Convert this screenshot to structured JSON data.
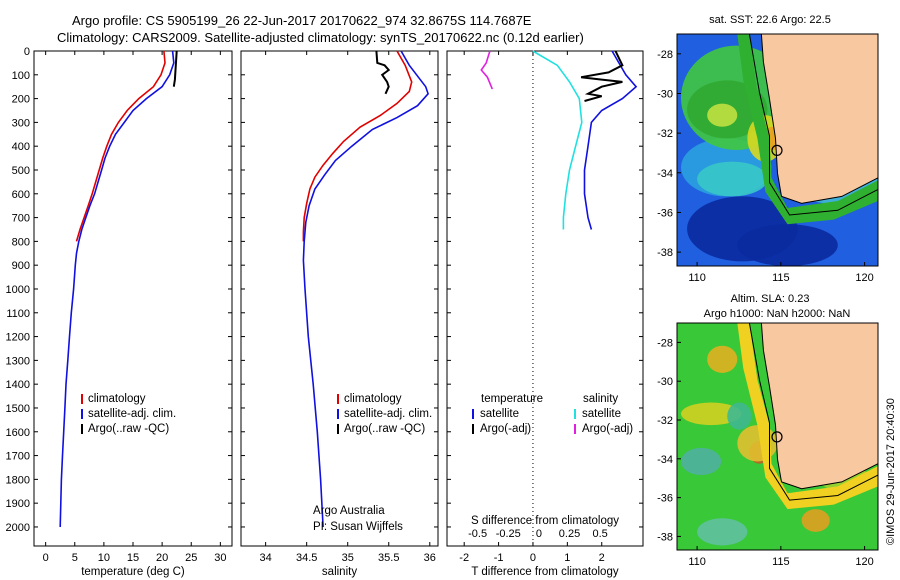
{
  "header": {
    "line1": "Argo profile: CS 5905199_26 22-Jun-2017 20170622_974 32.8675S 114.7687E",
    "line2": "Climatology: CARS2009. Satellite-adjusted climatology: synTS_20170622.nc (0.12d earlier)"
  },
  "colors": {
    "climatology": "#e00000",
    "satellite": "#1010e0",
    "argo": "#000000",
    "sat_salinity": "#20e0e0",
    "argo_salinity": "#e020e0",
    "land": "#f8c8a0"
  },
  "footer": {
    "credit_line1": "Argo Australia",
    "credit_line2": "PI: Susan Wijffels",
    "imos_stamp": "©IMOS 29-Jun-2017 20:40:30"
  },
  "chart_data": [
    {
      "type": "line",
      "id": "temperature",
      "xlabel": "temperature (deg C)",
      "ylabel": "",
      "xlim": [
        -2,
        32
      ],
      "ylim": [
        0,
        2080
      ],
      "xticks": [
        0,
        5,
        10,
        15,
        20,
        25,
        30
      ],
      "yticks": [
        0,
        100,
        200,
        300,
        400,
        500,
        600,
        700,
        800,
        900,
        1000,
        1100,
        1200,
        1300,
        1400,
        1500,
        1600,
        1700,
        1800,
        1900,
        2000
      ],
      "legend": [
        "climatology",
        "satellite-adj. clim.",
        "Argo(..raw -QC)"
      ],
      "series": [
        {
          "name": "climatology",
          "color": "#e00000",
          "points": [
            [
              20.3,
              0
            ],
            [
              20.5,
              50
            ],
            [
              19.8,
              100
            ],
            [
              18.5,
              150
            ],
            [
              16,
              200
            ],
            [
              14,
              250
            ],
            [
              12.5,
              300
            ],
            [
              11.3,
              350
            ],
            [
              10.5,
              400
            ],
            [
              9.8,
              450
            ],
            [
              9.2,
              500
            ],
            [
              8.6,
              550
            ],
            [
              8,
              600
            ],
            [
              7.3,
              650
            ],
            [
              6.6,
              700
            ],
            [
              5.9,
              750
            ],
            [
              5.3,
              800
            ]
          ]
        },
        {
          "name": "satellite-adj. clim.",
          "color": "#1010e0",
          "points": [
            [
              21.8,
              0
            ],
            [
              22,
              50
            ],
            [
              21.3,
              100
            ],
            [
              20,
              150
            ],
            [
              17.3,
              200
            ],
            [
              15,
              250
            ],
            [
              13.5,
              300
            ],
            [
              12,
              350
            ],
            [
              11,
              400
            ],
            [
              10.2,
              450
            ],
            [
              9.6,
              500
            ],
            [
              9,
              550
            ],
            [
              8.4,
              600
            ],
            [
              7.6,
              650
            ],
            [
              6.9,
              700
            ],
            [
              6.2,
              750
            ],
            [
              5.7,
              800
            ],
            [
              5.3,
              850
            ],
            [
              5.1,
              900
            ],
            [
              4.8,
              1000
            ],
            [
              4.4,
              1100
            ],
            [
              4.1,
              1200
            ],
            [
              3.8,
              1300
            ],
            [
              3.5,
              1400
            ],
            [
              3.3,
              1500
            ],
            [
              3.1,
              1600
            ],
            [
              2.9,
              1700
            ],
            [
              2.7,
              1800
            ],
            [
              2.6,
              1900
            ],
            [
              2.5,
              2000
            ]
          ]
        },
        {
          "name": "Argo(..raw -QC)",
          "color": "#000000",
          "points": [
            [
              22.5,
              0
            ],
            [
              22.4,
              40
            ],
            [
              22.3,
              80
            ],
            [
              22.2,
              120
            ],
            [
              22.0,
              150
            ]
          ]
        }
      ]
    },
    {
      "type": "line",
      "id": "salinity",
      "xlabel": "salinity",
      "xlim": [
        33.7,
        36.1
      ],
      "ylim": [
        0,
        2080
      ],
      "xticks": [
        34,
        34.5,
        35,
        35.5,
        36
      ],
      "legend": [
        "climatology",
        "satellite-adj. clim.",
        "Argo(..raw -QC)"
      ],
      "series": [
        {
          "name": "climatology",
          "color": "#e00000",
          "points": [
            [
              35.6,
              0
            ],
            [
              35.7,
              60
            ],
            [
              35.78,
              130
            ],
            [
              35.75,
              170
            ],
            [
              35.6,
              220
            ],
            [
              35.4,
              270
            ],
            [
              35.15,
              320
            ],
            [
              34.95,
              380
            ],
            [
              34.82,
              430
            ],
            [
              34.7,
              480
            ],
            [
              34.6,
              530
            ],
            [
              34.54,
              580
            ],
            [
              34.5,
              640
            ],
            [
              34.47,
              700
            ],
            [
              34.46,
              760
            ],
            [
              34.46,
              800
            ]
          ]
        },
        {
          "name": "satellite-adj. clim.",
          "color": "#1010e0",
          "points": [
            [
              35.65,
              0
            ],
            [
              35.75,
              60
            ],
            [
              35.95,
              150
            ],
            [
              35.98,
              180
            ],
            [
              35.85,
              230
            ],
            [
              35.6,
              280
            ],
            [
              35.3,
              330
            ],
            [
              35.05,
              400
            ],
            [
              34.85,
              460
            ],
            [
              34.72,
              520
            ],
            [
              34.6,
              580
            ],
            [
              34.53,
              650
            ],
            [
              34.49,
              720
            ],
            [
              34.47,
              800
            ],
            [
              34.46,
              880
            ],
            [
              34.48,
              1000
            ],
            [
              34.52,
              1200
            ],
            [
              34.58,
              1400
            ],
            [
              34.63,
              1600
            ],
            [
              34.67,
              1800
            ],
            [
              34.7,
              2000
            ]
          ]
        },
        {
          "name": "Argo(..raw -QC)",
          "color": "#000000",
          "points": [
            [
              35.35,
              0
            ],
            [
              35.36,
              50
            ],
            [
              35.45,
              60
            ],
            [
              35.5,
              80
            ],
            [
              35.42,
              100
            ],
            [
              35.48,
              130
            ],
            [
              35.5,
              150
            ],
            [
              35.46,
              180
            ]
          ]
        }
      ]
    },
    {
      "type": "line",
      "id": "difference",
      "xlabel": "T difference from climatology",
      "xlabel_top": "S difference from climatology",
      "xlim": [
        -2.5,
        3.2
      ],
      "xlim_s": [
        -0.75,
        0.85
      ],
      "ylim": [
        0,
        2080
      ],
      "xticks": [
        -2,
        -1,
        0,
        1,
        2
      ],
      "xticks_s": [
        "-0.5",
        "-0.25",
        "0",
        "0.25",
        "0.5"
      ],
      "legend_temperature": {
        "heading": "temperature",
        "items": [
          "satellite",
          "Argo(-adj)"
        ]
      },
      "legend_salinity": {
        "heading": "salinity",
        "items": [
          "satellite",
          "Argo(-adj)"
        ]
      },
      "series": [
        {
          "name": "satellite",
          "color": "#1010e0",
          "points": [
            [
              2.3,
              0
            ],
            [
              2.5,
              50
            ],
            [
              2.7,
              100
            ],
            [
              3,
              150
            ],
            [
              2.6,
              200
            ],
            [
              2,
              250
            ],
            [
              1.7,
              300
            ],
            [
              1.6,
              400
            ],
            [
              1.5,
              500
            ],
            [
              1.5,
              600
            ],
            [
              1.6,
              700
            ],
            [
              1.7,
              750
            ]
          ]
        },
        {
          "name": "Argo(-adj)",
          "color": "#000000",
          "points": [
            [
              2.4,
              0
            ],
            [
              2.6,
              60
            ],
            [
              2.2,
              90
            ],
            [
              1.4,
              110
            ],
            [
              2,
              120
            ],
            [
              2.6,
              130
            ],
            [
              2,
              150
            ],
            [
              1.6,
              180
            ],
            [
              2,
              190
            ],
            [
              1.5,
              210
            ]
          ]
        },
        {
          "name": "salinity satellite",
          "color": "#20e0e0",
          "points": [
            [
              -0.05,
              0
            ],
            [
              0.15,
              60
            ],
            [
              0.25,
              130
            ],
            [
              0.33,
              200
            ],
            [
              0.35,
              300
            ],
            [
              0.3,
              400
            ],
            [
              0.25,
              500
            ],
            [
              0.22,
              600
            ],
            [
              0.2,
              700
            ],
            [
              0.2,
              750
            ]
          ]
        },
        {
          "name": "salinity Argo(-adj)",
          "color": "#e020e0",
          "points": [
            [
              -0.4,
              0
            ],
            [
              -0.43,
              50
            ],
            [
              -0.47,
              80
            ],
            [
              -0.42,
              110
            ],
            [
              -0.38,
              160
            ]
          ]
        }
      ]
    },
    {
      "type": "heatmap",
      "id": "sst_map",
      "title": "sat. SST: 22.6 Argo: 22.5",
      "xticks": [
        "110",
        "115",
        "120"
      ],
      "yticks": [
        "-28",
        "-30",
        "-32",
        "-34",
        "-36",
        "-38"
      ],
      "marker": {
        "lon": 114.77,
        "lat": -32.87
      }
    },
    {
      "type": "heatmap",
      "id": "sla_map",
      "title_line1": "Altim. SLA: 0.23",
      "title_line2": "Argo h1000: NaN h2000: NaN",
      "xticks": [
        "110",
        "115",
        "120"
      ],
      "yticks": [
        "-28",
        "-30",
        "-32",
        "-34",
        "-36",
        "-38"
      ],
      "marker": {
        "lon": 114.77,
        "lat": -32.87
      }
    }
  ]
}
